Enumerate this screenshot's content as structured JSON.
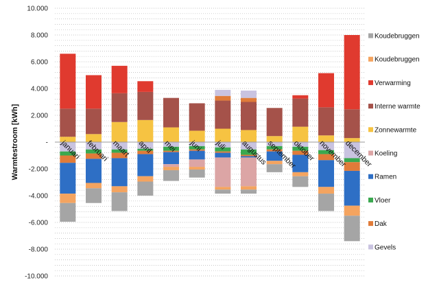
{
  "chart_data": {
    "type": "bar",
    "stacked": true,
    "ylabel": "Warmtestroom [kWh]",
    "xlabel": "",
    "title": "",
    "ylim": [
      -10000,
      10000
    ],
    "major_ticks": [
      10000,
      8000,
      6000,
      4000,
      2000,
      0,
      -2000,
      -4000,
      -6000,
      -8000,
      -10000
    ],
    "tick_labels": [
      "10.000",
      "8.000",
      "6.000",
      "4.000",
      "2.000",
      "-",
      "-2.000",
      "-4.000",
      "-6.000",
      "-8.000",
      "-10.000"
    ],
    "minor_grid_step": 400,
    "grid": "dotted",
    "legend_position": "right",
    "categories": [
      "januari",
      "februari",
      "maart",
      "april",
      "mei",
      "juni",
      "juli",
      "augustus",
      "september",
      "oktober",
      "november",
      "december"
    ],
    "positive_series": [
      {
        "name": "Koudebruggen",
        "color": "#a5a5a5",
        "values": [
          0,
          0,
          0,
          0,
          0,
          0,
          0,
          0,
          0,
          0,
          0,
          0
        ]
      },
      {
        "name": "Koudebruggen",
        "color": "#f4a460",
        "values": [
          0,
          0,
          0,
          0,
          0,
          0,
          0,
          0,
          0,
          0,
          0,
          0
        ]
      },
      {
        "name": "Zonnewarmte",
        "color": "#f6c342",
        "values": [
          400,
          600,
          1500,
          1650,
          1100,
          850,
          1000,
          900,
          450,
          1150,
          500,
          300
        ]
      },
      {
        "name": "Interne warmte",
        "color": "#a5524a",
        "values": [
          2100,
          1900,
          2150,
          2100,
          2200,
          2050,
          2100,
          2100,
          2100,
          2100,
          2100,
          2150
        ]
      },
      {
        "name": "Verwarming",
        "color": "#e03a2f",
        "values": [
          4100,
          2500,
          2050,
          800,
          0,
          0,
          0,
          0,
          0,
          250,
          2550,
          5550
        ]
      },
      {
        "name": "Koeling",
        "color": "#dca5a5",
        "values": [
          0,
          0,
          0,
          0,
          0,
          0,
          0,
          0,
          0,
          0,
          0,
          0
        ]
      },
      {
        "name": "Ramen",
        "color": "#2e6fc5",
        "values": [
          0,
          0,
          0,
          0,
          0,
          0,
          0,
          0,
          0,
          0,
          0,
          0
        ]
      },
      {
        "name": "Vloer",
        "color": "#3aa84f",
        "values": [
          0,
          0,
          0,
          0,
          0,
          0,
          0,
          0,
          0,
          0,
          0,
          0
        ]
      },
      {
        "name": "Dak",
        "color": "#e07b39",
        "values": [
          0,
          0,
          0,
          0,
          0,
          0,
          350,
          300,
          0,
          0,
          0,
          0
        ]
      },
      {
        "name": "Gevels",
        "color": "#c9c3e0",
        "values": [
          0,
          0,
          0,
          0,
          0,
          0,
          450,
          550,
          0,
          0,
          0,
          0
        ]
      }
    ],
    "negative_series": [
      {
        "name": "Gevels",
        "color": "#c9c3e0",
        "values": [
          -700,
          -550,
          -550,
          -500,
          -350,
          -300,
          -400,
          -550,
          -300,
          -350,
          -600,
          -1200
        ]
      },
      {
        "name": "Vloer",
        "color": "#3aa84f",
        "values": [
          -300,
          -300,
          -250,
          -150,
          -300,
          -250,
          -300,
          -400,
          -250,
          -300,
          -300,
          -300
        ]
      },
      {
        "name": "Dak",
        "color": "#e07b39",
        "values": [
          -550,
          -400,
          -400,
          -250,
          -100,
          -100,
          -100,
          -100,
          -150,
          -300,
          -450,
          -650
        ]
      },
      {
        "name": "Ramen",
        "color": "#2e6fc5",
        "values": [
          -2300,
          -1800,
          -2100,
          -1650,
          -900,
          -650,
          -350,
          -100,
          -700,
          -1300,
          -2000,
          -2600
        ]
      },
      {
        "name": "Koeling",
        "color": "#dca5a5",
        "values": [
          0,
          0,
          0,
          0,
          -200,
          -550,
          -2200,
          -2150,
          0,
          0,
          0,
          0
        ]
      },
      {
        "name": "Koudebruggen",
        "color": "#f4a460",
        "values": [
          -700,
          -400,
          -450,
          -400,
          -250,
          -200,
          -200,
          -250,
          -250,
          -300,
          -500,
          -750
        ]
      },
      {
        "name": "Koudebruggen",
        "color": "#a5a5a5",
        "values": [
          -1400,
          -1100,
          -1400,
          -1050,
          -800,
          -600,
          -300,
          -300,
          -600,
          -800,
          -1300,
          -1900
        ]
      }
    ],
    "legend": [
      {
        "name": "Koudebruggen",
        "color": "#a5a5a5"
      },
      {
        "name": "Koudebruggen",
        "color": "#f4a460"
      },
      {
        "name": "Verwarming",
        "color": "#e03a2f"
      },
      {
        "name": "Interne warmte",
        "color": "#a5524a"
      },
      {
        "name": "Zonnewarmte",
        "color": "#f6c342"
      },
      {
        "name": "Koeling",
        "color": "#dca5a5"
      },
      {
        "name": "Ramen",
        "color": "#2e6fc5"
      },
      {
        "name": "Vloer",
        "color": "#3aa84f"
      },
      {
        "name": "Dak",
        "color": "#e07b39"
      },
      {
        "name": "Gevels",
        "color": "#c9c3e0"
      }
    ]
  }
}
